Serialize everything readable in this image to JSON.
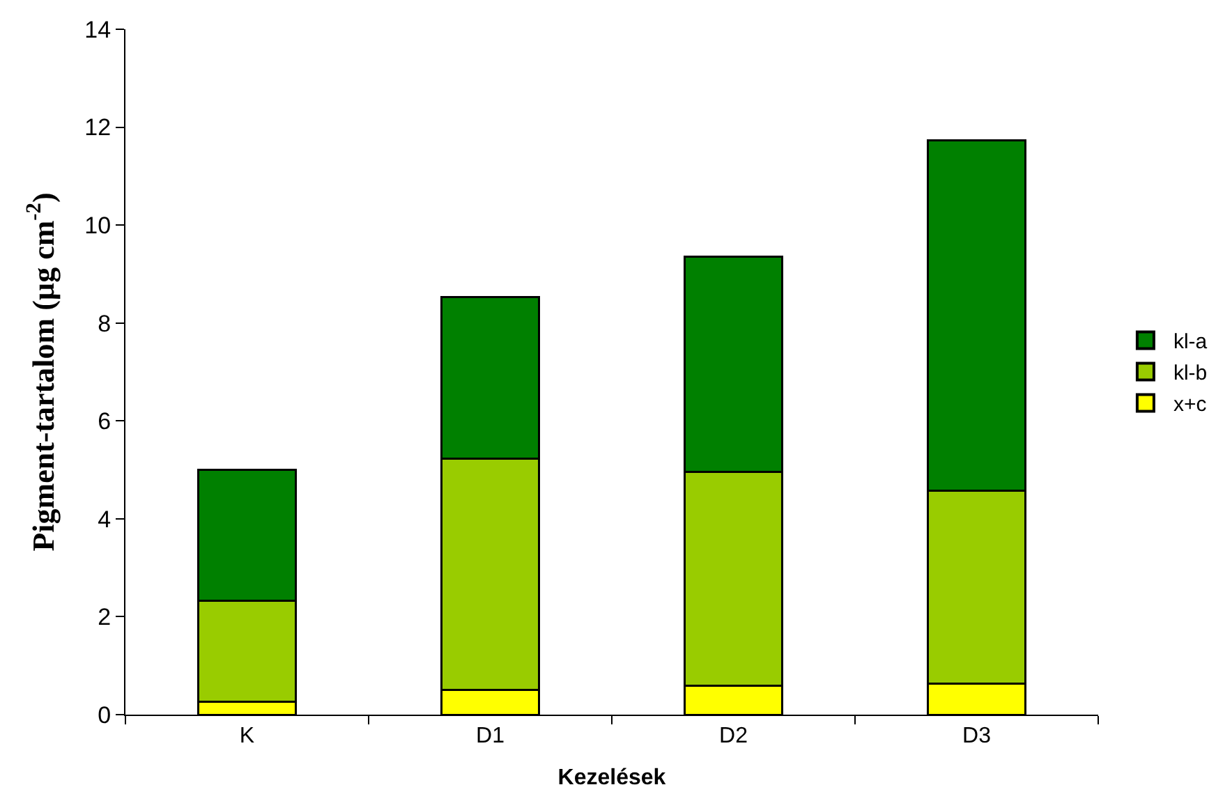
{
  "chart_data": {
    "type": "bar",
    "stacked": true,
    "xlabel": "Kezelések",
    "ylabel": "Pigment-tartalom (µg cm$^{-2}$)",
    "categories": [
      "K",
      "D1",
      "D2",
      "D3"
    ],
    "series": [
      {
        "name": "x+c",
        "color": "#ffff00",
        "values": [
          0.27,
          0.5,
          0.59,
          0.64
        ]
      },
      {
        "name": "kl-b",
        "color": "#99cc00",
        "values": [
          2.05,
          4.73,
          4.37,
          3.93
        ]
      },
      {
        "name": "kl-a",
        "color": "#008000",
        "values": [
          2.68,
          3.3,
          4.4,
          7.16
        ]
      }
    ],
    "ylim": [
      0,
      14
    ],
    "yticks": [
      0,
      2,
      4,
      6,
      8,
      10,
      12,
      14
    ],
    "legend": "right"
  }
}
